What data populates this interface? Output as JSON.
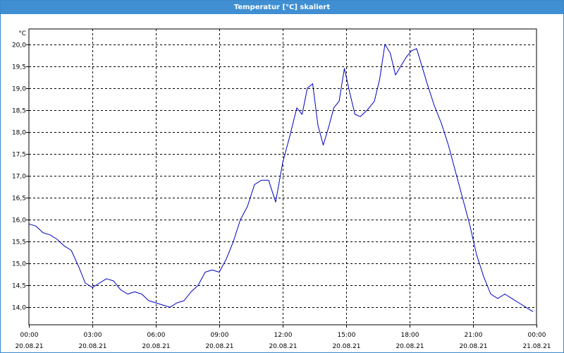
{
  "window": {
    "title": "Temperatur [°C] skaliert"
  },
  "chart_data": {
    "type": "line",
    "title": "Temperatur [°C] skaliert",
    "ylabel": "°C",
    "xlabel": "",
    "ylim": [
      13.6,
      20.35
    ],
    "xlim": [
      "2021-08-20T00:00",
      "2021-08-21T00:00"
    ],
    "grid": true,
    "legend": "none",
    "line_color": "#0000c0",
    "y_ticks": [
      "20,0",
      "19,5",
      "19,0",
      "18,5",
      "18,0",
      "17,5",
      "17,0",
      "16,5",
      "16,0",
      "15,5",
      "15,0",
      "14,5",
      "14,0"
    ],
    "x_ticks": [
      {
        "time": "00:00",
        "date": "20.08.21"
      },
      {
        "time": "03:00",
        "date": "20.08.21"
      },
      {
        "time": "06:00",
        "date": "20.08.21"
      },
      {
        "time": "09:00",
        "date": "20.08.21"
      },
      {
        "time": "12:00",
        "date": "20.08.21"
      },
      {
        "time": "15:00",
        "date": "20.08.21"
      },
      {
        "time": "18:00",
        "date": "20.08.21"
      },
      {
        "time": "21:00",
        "date": "20.08.21"
      },
      {
        "time": "00:00",
        "date": "21.08.21"
      }
    ],
    "series": [
      {
        "x": [
          "20.08.21 00:00",
          "20.08.21 00:20",
          "20.08.21 00:40",
          "20.08.21 01:00",
          "20.08.21 01:20",
          "20.08.21 01:40",
          "20.08.21 02:00",
          "20.08.21 02:20",
          "20.08.21 02:40",
          "20.08.21 03:00",
          "20.08.21 03:20",
          "20.08.21 03:40",
          "20.08.21 04:00",
          "20.08.21 04:20",
          "20.08.21 04:40",
          "20.08.21 05:00",
          "20.08.21 05:20",
          "20.08.21 05:40",
          "20.08.21 06:00",
          "20.08.21 06:20",
          "20.08.21 06:40",
          "20.08.21 07:00",
          "20.08.21 07:20",
          "20.08.21 07:40",
          "20.08.21 08:00",
          "20.08.21 08:20",
          "20.08.21 08:40",
          "20.08.21 09:00",
          "20.08.21 09:20",
          "20.08.21 09:40",
          "20.08.21 10:00",
          "20.08.21 10:20",
          "20.08.21 10:40",
          "20.08.21 11:00",
          "20.08.21 11:20",
          "20.08.21 11:40",
          "20.08.21 12:00",
          "20.08.21 12:20",
          "20.08.21 12:40",
          "20.08.21 12:55",
          "20.08.21 13:10",
          "20.08.21 13:25",
          "20.08.21 13:40",
          "20.08.21 13:55",
          "20.08.21 14:10",
          "20.08.21 14:25",
          "20.08.21 14:40",
          "20.08.21 14:55",
          "20.08.21 15:10",
          "20.08.21 15:25",
          "20.08.21 15:40",
          "20.08.21 16:00",
          "20.08.21 16:20",
          "20.08.21 16:35",
          "20.08.21 16:50",
          "20.08.21 17:05",
          "20.08.21 17:20",
          "20.08.21 17:35",
          "20.08.21 17:50",
          "20.08.21 18:05",
          "20.08.21 18:20",
          "20.08.21 18:35",
          "20.08.21 18:50",
          "20.08.21 19:10",
          "20.08.21 19:30",
          "20.08.21 19:50",
          "20.08.21 20:10",
          "20.08.21 20:30",
          "20.08.21 20:50",
          "20.08.21 21:10",
          "20.08.21 21:30",
          "20.08.21 21:50",
          "20.08.21 22:10",
          "20.08.21 22:30",
          "20.08.21 22:50",
          "20.08.21 23:10",
          "20.08.21 23:30",
          "20.08.21 23:50"
        ],
        "values": [
          15.9,
          15.85,
          15.7,
          15.65,
          15.55,
          15.4,
          15.3,
          14.95,
          14.55,
          14.45,
          14.55,
          14.65,
          14.6,
          14.4,
          14.3,
          14.35,
          14.3,
          14.15,
          14.1,
          14.05,
          14.0,
          14.1,
          14.15,
          14.35,
          14.5,
          14.8,
          14.85,
          14.8,
          15.1,
          15.5,
          16.0,
          16.3,
          16.8,
          16.9,
          16.9,
          16.4,
          17.3,
          17.9,
          18.55,
          18.4,
          19.0,
          19.1,
          18.15,
          17.7,
          18.1,
          18.55,
          18.7,
          19.45,
          18.9,
          18.4,
          18.35,
          18.5,
          18.7,
          19.2,
          20.0,
          19.8,
          19.3,
          19.5,
          19.7,
          19.85,
          19.9,
          19.5,
          19.1,
          18.6,
          18.2,
          17.7,
          17.1,
          16.5,
          15.9,
          15.2,
          14.7,
          14.3,
          14.2,
          14.3,
          14.2,
          14.1,
          14.0,
          13.9
        ]
      }
    ]
  }
}
